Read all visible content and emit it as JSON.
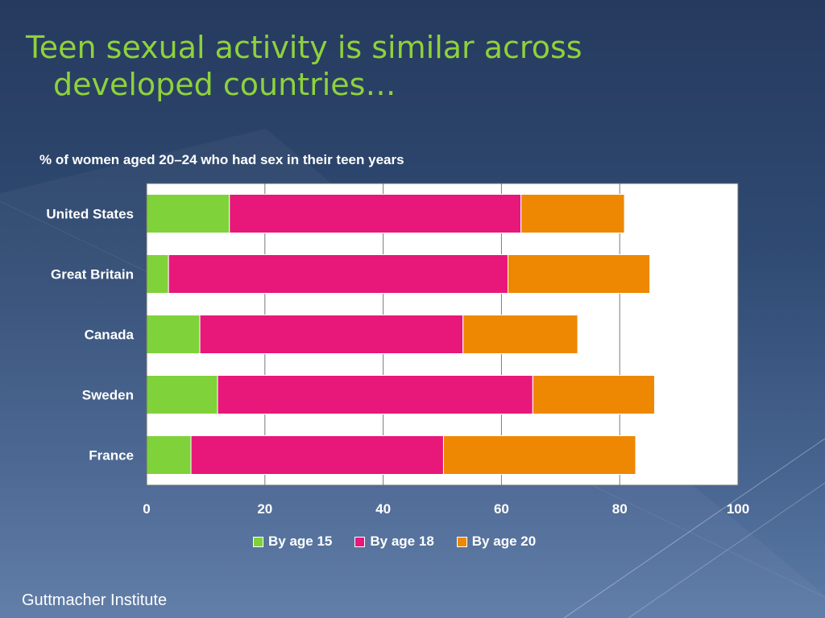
{
  "slide": {
    "title_line1": "Teen sexual activity is similar across",
    "title_line2": "developed countries…",
    "source": "Guttmacher Institute"
  },
  "chart_data": {
    "type": "bar",
    "orientation": "horizontal",
    "stacked": true,
    "title": "% of women aged 20–24 who had sex in their teen years",
    "categories": [
      "United States",
      "Great Britain",
      "Canada",
      "Sweden",
      "France"
    ],
    "series": [
      {
        "name": "By age 15",
        "values": [
          14,
          3.7,
          9,
          12,
          7.5
        ],
        "color": "#7fd23a"
      },
      {
        "name": "By age 18",
        "values": [
          49.3,
          57.4,
          44.5,
          53.3,
          42.7
        ],
        "color": "#e8177a"
      },
      {
        "name": "By age 20",
        "values": [
          17.5,
          24,
          19.4,
          20.6,
          32.5
        ],
        "color": "#ee8802"
      }
    ],
    "xlim": [
      0,
      100
    ],
    "xticks": [
      "0",
      "20",
      "40",
      "60",
      "80",
      "100"
    ],
    "grid": true,
    "legend": "bottom",
    "plot_background": "#ffffff"
  }
}
